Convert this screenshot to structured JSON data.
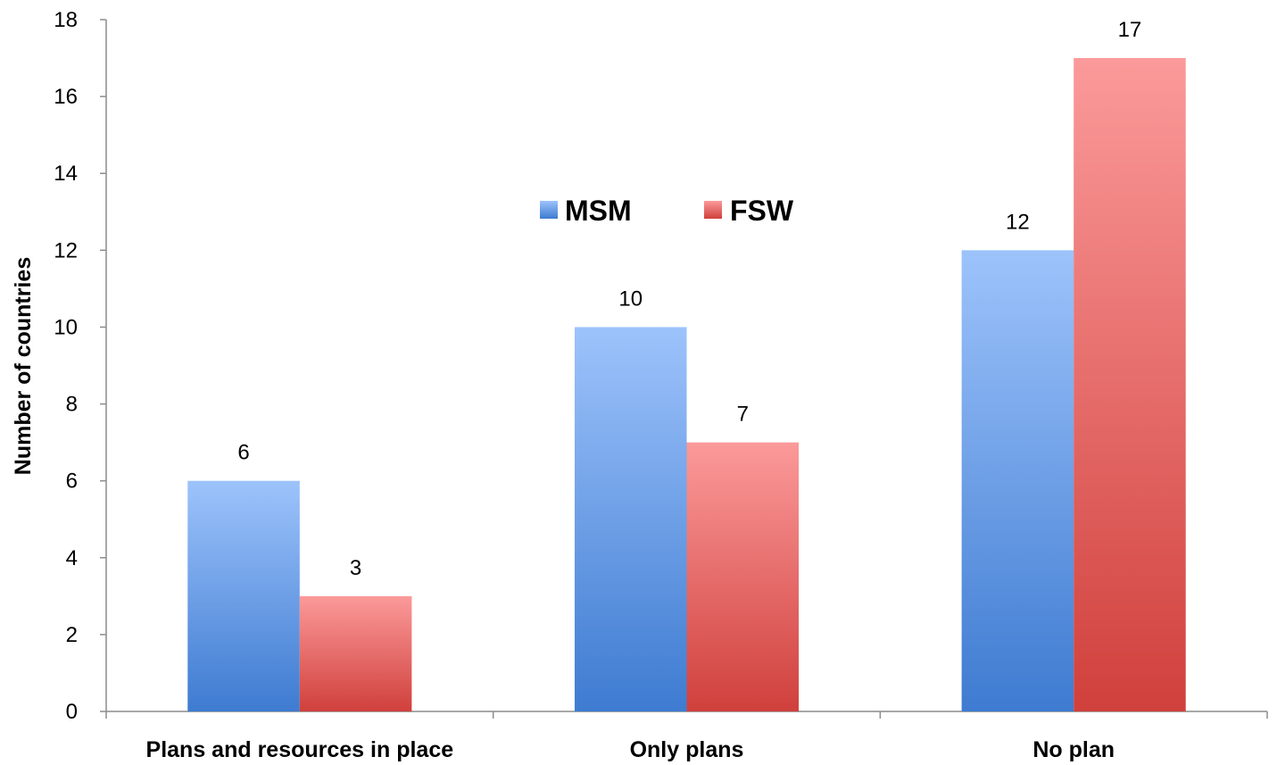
{
  "chart_data": {
    "type": "bar",
    "categories": [
      "Plans and resources in place",
      "Only plans",
      "No plan"
    ],
    "series": [
      {
        "name": "MSM",
        "values": [
          6,
          10,
          12
        ],
        "color": "#5b8fd9"
      },
      {
        "name": "FSW",
        "values": [
          3,
          7,
          17
        ],
        "color": "#e06060"
      }
    ],
    "title": "",
    "xlabel": "",
    "ylabel": "Number of countries",
    "ylim": [
      0,
      18
    ],
    "yticks": [
      0,
      2,
      4,
      6,
      8,
      10,
      12,
      14,
      16,
      18
    ],
    "grid": false,
    "legend_position": "center-top",
    "data_labels": true
  }
}
